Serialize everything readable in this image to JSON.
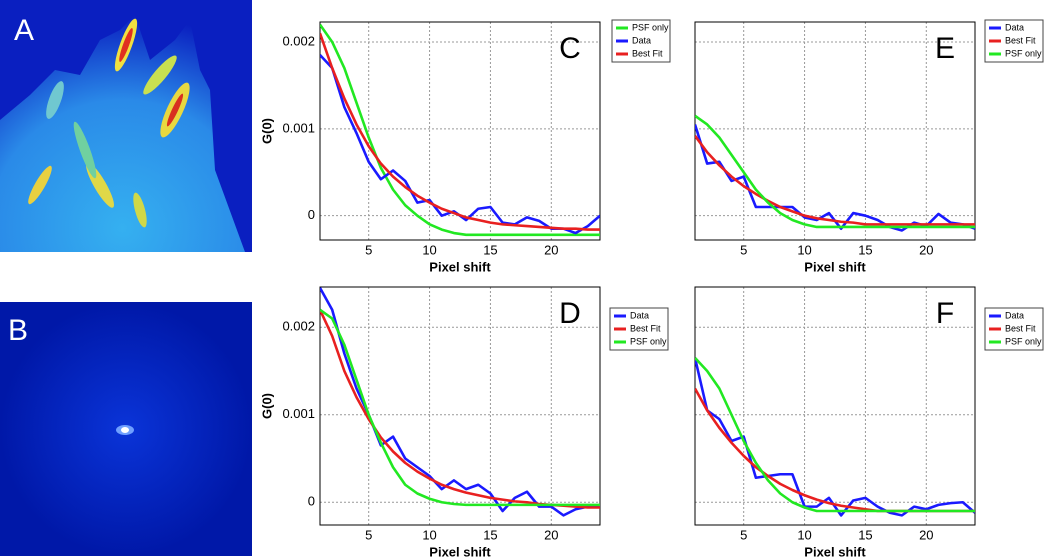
{
  "image_panels": [
    {
      "label": "A"
    },
    {
      "label": "B"
    }
  ],
  "chart_data": [
    {
      "type": "line",
      "annotation": "C",
      "xlabel": "Pixel shift",
      "ylabel": "G(0)",
      "x": [
        1,
        2,
        3,
        4,
        5,
        6,
        7,
        8,
        9,
        10,
        11,
        12,
        13,
        14,
        15,
        16,
        17,
        18,
        19,
        20,
        21,
        22,
        23,
        24
      ],
      "xlim": [
        1,
        24
      ],
      "xticks": [
        5,
        10,
        15,
        20
      ],
      "ylim": [
        -0.00028,
        0.00223
      ],
      "yticks": [
        0,
        0.001,
        0.002
      ],
      "ytick_labels": true,
      "grid": true,
      "series": [
        {
          "name": "PSF only",
          "color": "#22e822",
          "values": [
            0.0022,
            0.002,
            0.0017,
            0.0013,
            0.0009,
            0.00055,
            0.0003,
            0.00012,
            0.0,
            -0.0001,
            -0.00016,
            -0.0002,
            -0.00022,
            -0.00022,
            -0.00022,
            -0.00022,
            -0.00022,
            -0.00022,
            -0.00022,
            -0.00022,
            -0.00022,
            -0.00022,
            -0.00022,
            -0.00022
          ]
        },
        {
          "name": "Data",
          "color": "#1a1aff",
          "values": [
            0.00185,
            0.0017,
            0.00125,
            0.00095,
            0.00062,
            0.00042,
            0.00052,
            0.0004,
            0.00015,
            0.00018,
            0.0,
            5e-05,
            -5e-05,
            8e-05,
            0.0001,
            -8e-05,
            -0.0001,
            -2e-05,
            -6e-05,
            -0.00015,
            -0.00015,
            -0.0002,
            -0.00012,
            0.0
          ]
        },
        {
          "name": "Best Fit",
          "color": "#e82020",
          "values": [
            0.0021,
            0.0017,
            0.00135,
            0.00105,
            0.0008,
            0.0006,
            0.00045,
            0.00033,
            0.00023,
            0.00015,
            8e-05,
            3e-05,
            -2e-05,
            -5e-05,
            -8e-05,
            -0.0001,
            -0.00011,
            -0.00012,
            -0.00013,
            -0.00014,
            -0.00015,
            -0.00015,
            -0.00016,
            -0.00016
          ]
        }
      ]
    },
    {
      "type": "line",
      "annotation": "D",
      "xlabel": "Pixel shift",
      "ylabel": "G(0)",
      "x": [
        1,
        2,
        3,
        4,
        5,
        6,
        7,
        8,
        9,
        10,
        11,
        12,
        13,
        14,
        15,
        16,
        17,
        18,
        19,
        20,
        21,
        22,
        23,
        24
      ],
      "xlim": [
        1,
        24
      ],
      "xticks": [
        5,
        10,
        15,
        20
      ],
      "ylim": [
        -0.00026,
        0.00246
      ],
      "yticks": [
        0,
        0.001,
        0.002
      ],
      "ytick_labels": true,
      "grid": true,
      "series": [
        {
          "name": "Data",
          "color": "#1a1aff",
          "values": [
            0.00245,
            0.0022,
            0.0017,
            0.0013,
            0.001,
            0.00065,
            0.00075,
            0.0005,
            0.0004,
            0.0003,
            0.00015,
            0.00025,
            0.00015,
            0.0002,
            0.0001,
            -0.0001,
            5e-05,
            0.00012,
            -5e-05,
            -5e-05,
            -0.00015,
            -8e-05,
            -5e-05,
            -5e-05
          ]
        },
        {
          "name": "Best Fit",
          "color": "#e82020",
          "values": [
            0.0022,
            0.0019,
            0.0015,
            0.0012,
            0.00095,
            0.00074,
            0.00058,
            0.00045,
            0.00035,
            0.00027,
            0.0002,
            0.00015,
            0.00011,
            8e-05,
            5e-05,
            3e-05,
            1e-05,
            0.0,
            -2e-05,
            -3e-05,
            -4e-05,
            -5e-05,
            -6e-05,
            -6e-05
          ]
        },
        {
          "name": "PSF only",
          "color": "#22e822",
          "values": [
            0.0022,
            0.0021,
            0.0018,
            0.0014,
            0.001,
            0.00068,
            0.0004,
            0.0002,
            0.0001,
            4e-05,
            0.0,
            -2e-05,
            -3e-05,
            -3e-05,
            -3e-05,
            -3e-05,
            -3e-05,
            -3e-05,
            -3e-05,
            -3e-05,
            -3e-05,
            -3e-05,
            -3e-05,
            -3e-05
          ]
        }
      ]
    },
    {
      "type": "line",
      "annotation": "E",
      "xlabel": "Pixel shift",
      "x": [
        1,
        2,
        3,
        4,
        5,
        6,
        7,
        8,
        9,
        10,
        11,
        12,
        13,
        14,
        15,
        16,
        17,
        18,
        19,
        20,
        21,
        22,
        23,
        24
      ],
      "xlim": [
        1,
        24
      ],
      "xticks": [
        5,
        10,
        15,
        20
      ],
      "ylim": [
        -0.00028,
        0.00223
      ],
      "yticks": [
        0,
        0.001,
        0.002
      ],
      "ytick_labels": false,
      "grid": true,
      "series": [
        {
          "name": "Data",
          "color": "#1a1aff",
          "values": [
            0.00105,
            0.0006,
            0.00062,
            0.0004,
            0.00045,
            0.0001,
            0.0001,
            0.0001,
            0.0001,
            -2e-05,
            -5e-05,
            3e-05,
            -0.00015,
            3e-05,
            0.0,
            -5e-05,
            -0.00013,
            -0.00017,
            -8e-05,
            -0.00012,
            2e-05,
            -8e-05,
            -0.0001,
            -0.00015
          ]
        },
        {
          "name": "Best Fit",
          "color": "#e82020",
          "values": [
            0.00092,
            0.00073,
            0.00058,
            0.00045,
            0.00034,
            0.00025,
            0.00017,
            0.0001,
            5e-05,
            0.0,
            -3e-05,
            -5e-05,
            -7e-05,
            -8e-05,
            -0.0001,
            -0.0001,
            -0.0001,
            -0.0001,
            -0.0001,
            -0.0001,
            -0.0001,
            -0.0001,
            -0.0001,
            -0.0001
          ]
        },
        {
          "name": "PSF only",
          "color": "#22e822",
          "values": [
            0.00115,
            0.00105,
            0.0009,
            0.0007,
            0.0005,
            0.0003,
            0.00015,
            3e-05,
            -5e-05,
            -0.0001,
            -0.00013,
            -0.00013,
            -0.00013,
            -0.00013,
            -0.00013,
            -0.00013,
            -0.00013,
            -0.00013,
            -0.00013,
            -0.00013,
            -0.00013,
            -0.00013,
            -0.00013,
            -0.00013
          ]
        }
      ]
    },
    {
      "type": "line",
      "annotation": "F",
      "xlabel": "Pixel shift",
      "x": [
        1,
        2,
        3,
        4,
        5,
        6,
        7,
        8,
        9,
        10,
        11,
        12,
        13,
        14,
        15,
        16,
        17,
        18,
        19,
        20,
        21,
        22,
        23,
        24
      ],
      "xlim": [
        1,
        24
      ],
      "xticks": [
        5,
        10,
        15,
        20
      ],
      "ylim": [
        -0.00026,
        0.00246
      ],
      "yticks": [
        0,
        0.001,
        0.002
      ],
      "ytick_labels": false,
      "grid": true,
      "series": [
        {
          "name": "Data",
          "color": "#1a1aff",
          "values": [
            0.00165,
            0.00105,
            0.00095,
            0.0007,
            0.00075,
            0.00028,
            0.0003,
            0.00032,
            0.00032,
            -5e-05,
            -5e-05,
            5e-05,
            -0.00015,
            2e-05,
            5e-05,
            -5e-05,
            -0.00012,
            -0.00015,
            -5e-05,
            -8e-05,
            -3e-05,
            -1e-05,
            0.0,
            -0.00012
          ]
        },
        {
          "name": "Best Fit",
          "color": "#e82020",
          "values": [
            0.0013,
            0.00105,
            0.00085,
            0.00068,
            0.00053,
            0.0004,
            0.0003,
            0.00021,
            0.00014,
            8e-05,
            3e-05,
            -1e-05,
            -4e-05,
            -6e-05,
            -8e-05,
            -0.0001,
            -0.0001,
            -0.0001,
            -0.0001,
            -0.0001,
            -0.0001,
            -0.0001,
            -0.0001,
            -0.0001
          ]
        },
        {
          "name": "PSF only",
          "color": "#22e822",
          "values": [
            0.00165,
            0.0015,
            0.0013,
            0.001,
            0.0007,
            0.00045,
            0.00025,
            0.0001,
            0.0,
            -6e-05,
            -0.0001,
            -0.0001,
            -0.0001,
            -0.0001,
            -0.0001,
            -0.0001,
            -0.0001,
            -0.0001,
            -0.0001,
            -0.0001,
            -0.0001,
            -0.0001,
            -0.0001,
            -0.0001
          ]
        }
      ]
    }
  ]
}
